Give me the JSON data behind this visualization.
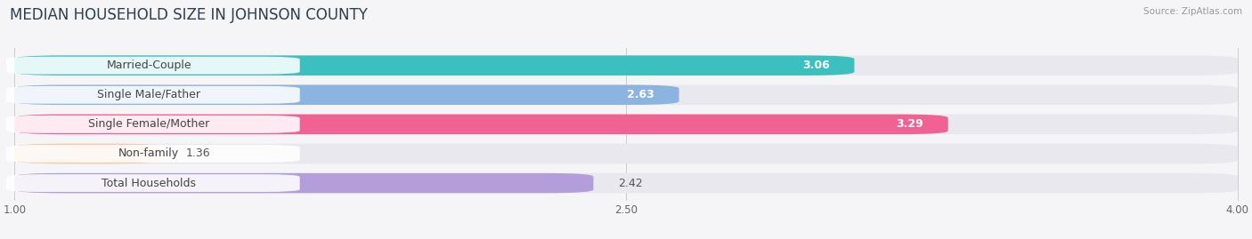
{
  "title": "MEDIAN HOUSEHOLD SIZE IN JOHNSON COUNTY",
  "source": "Source: ZipAtlas.com",
  "categories": [
    "Married-Couple",
    "Single Male/Father",
    "Single Female/Mother",
    "Non-family",
    "Total Households"
  ],
  "values": [
    3.06,
    2.63,
    3.29,
    1.36,
    2.42
  ],
  "bar_colors": [
    "#3bbfbf",
    "#8cb4e0",
    "#f06292",
    "#f5c9a0",
    "#b39ddb"
  ],
  "xlim_min": 1.0,
  "xlim_max": 4.0,
  "xticks": [
    1.0,
    2.5,
    4.0
  ],
  "title_fontsize": 12,
  "label_fontsize": 9,
  "value_fontsize": 9,
  "bg_color": "#f5f5f8",
  "bar_bg_color": "#e8e8ee",
  "value_inside_color": "white",
  "value_outside_color": "#555555"
}
